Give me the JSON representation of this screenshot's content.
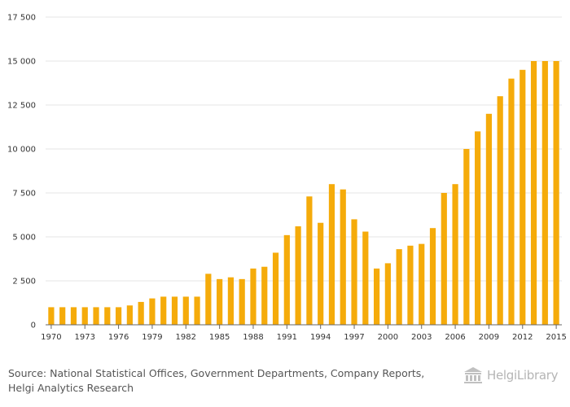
{
  "chart_data": {
    "type": "bar",
    "title": "",
    "xlabel": "",
    "ylabel": "",
    "ylim": [
      0,
      17500
    ],
    "yticks": [
      0,
      2500,
      5000,
      7500,
      10000,
      12500,
      15000,
      17500
    ],
    "ytick_labels": [
      "0",
      "2 500",
      "5 000",
      "7 500",
      "10 000",
      "12 500",
      "15 000",
      "17 500"
    ],
    "grid": true,
    "bar_color": "#f5ab0a",
    "categories": [
      "1970",
      "1971",
      "1972",
      "1973",
      "1974",
      "1975",
      "1976",
      "1977",
      "1978",
      "1979",
      "1980",
      "1981",
      "1982",
      "1983",
      "1984",
      "1985",
      "1986",
      "1987",
      "1988",
      "1989",
      "1990",
      "1991",
      "1992",
      "1993",
      "1994",
      "1995",
      "1996",
      "1997",
      "1998",
      "1999",
      "2000",
      "2001",
      "2002",
      "2003",
      "2004",
      "2005",
      "2006",
      "2007",
      "2008",
      "2009",
      "2010",
      "2011",
      "2012",
      "2013",
      "2014",
      "2015"
    ],
    "xtick_labels": [
      "1970",
      "1973",
      "1976",
      "1979",
      "1982",
      "1985",
      "1988",
      "1991",
      "1994",
      "1997",
      "2000",
      "2003",
      "2006",
      "2009",
      "2012",
      "2015"
    ],
    "values": [
      1000,
      1000,
      1000,
      1000,
      1000,
      1000,
      1000,
      1100,
      1300,
      1500,
      1600,
      1600,
      1600,
      1600,
      2900,
      2600,
      2700,
      2600,
      3200,
      3300,
      4100,
      5100,
      5600,
      7300,
      5800,
      8000,
      7700,
      6000,
      5300,
      3200,
      3500,
      4300,
      4500,
      4600,
      5500,
      7500,
      8000,
      10000,
      11000,
      12000,
      13000,
      14000,
      14500,
      15000,
      15000,
      15000
    ]
  },
  "footer": {
    "source_line1": "Source: National Statistical Offices, Government Departments, Company Reports,",
    "source_line2": "Helgi Analytics Research",
    "logo_text": "HelgiLibrary"
  }
}
